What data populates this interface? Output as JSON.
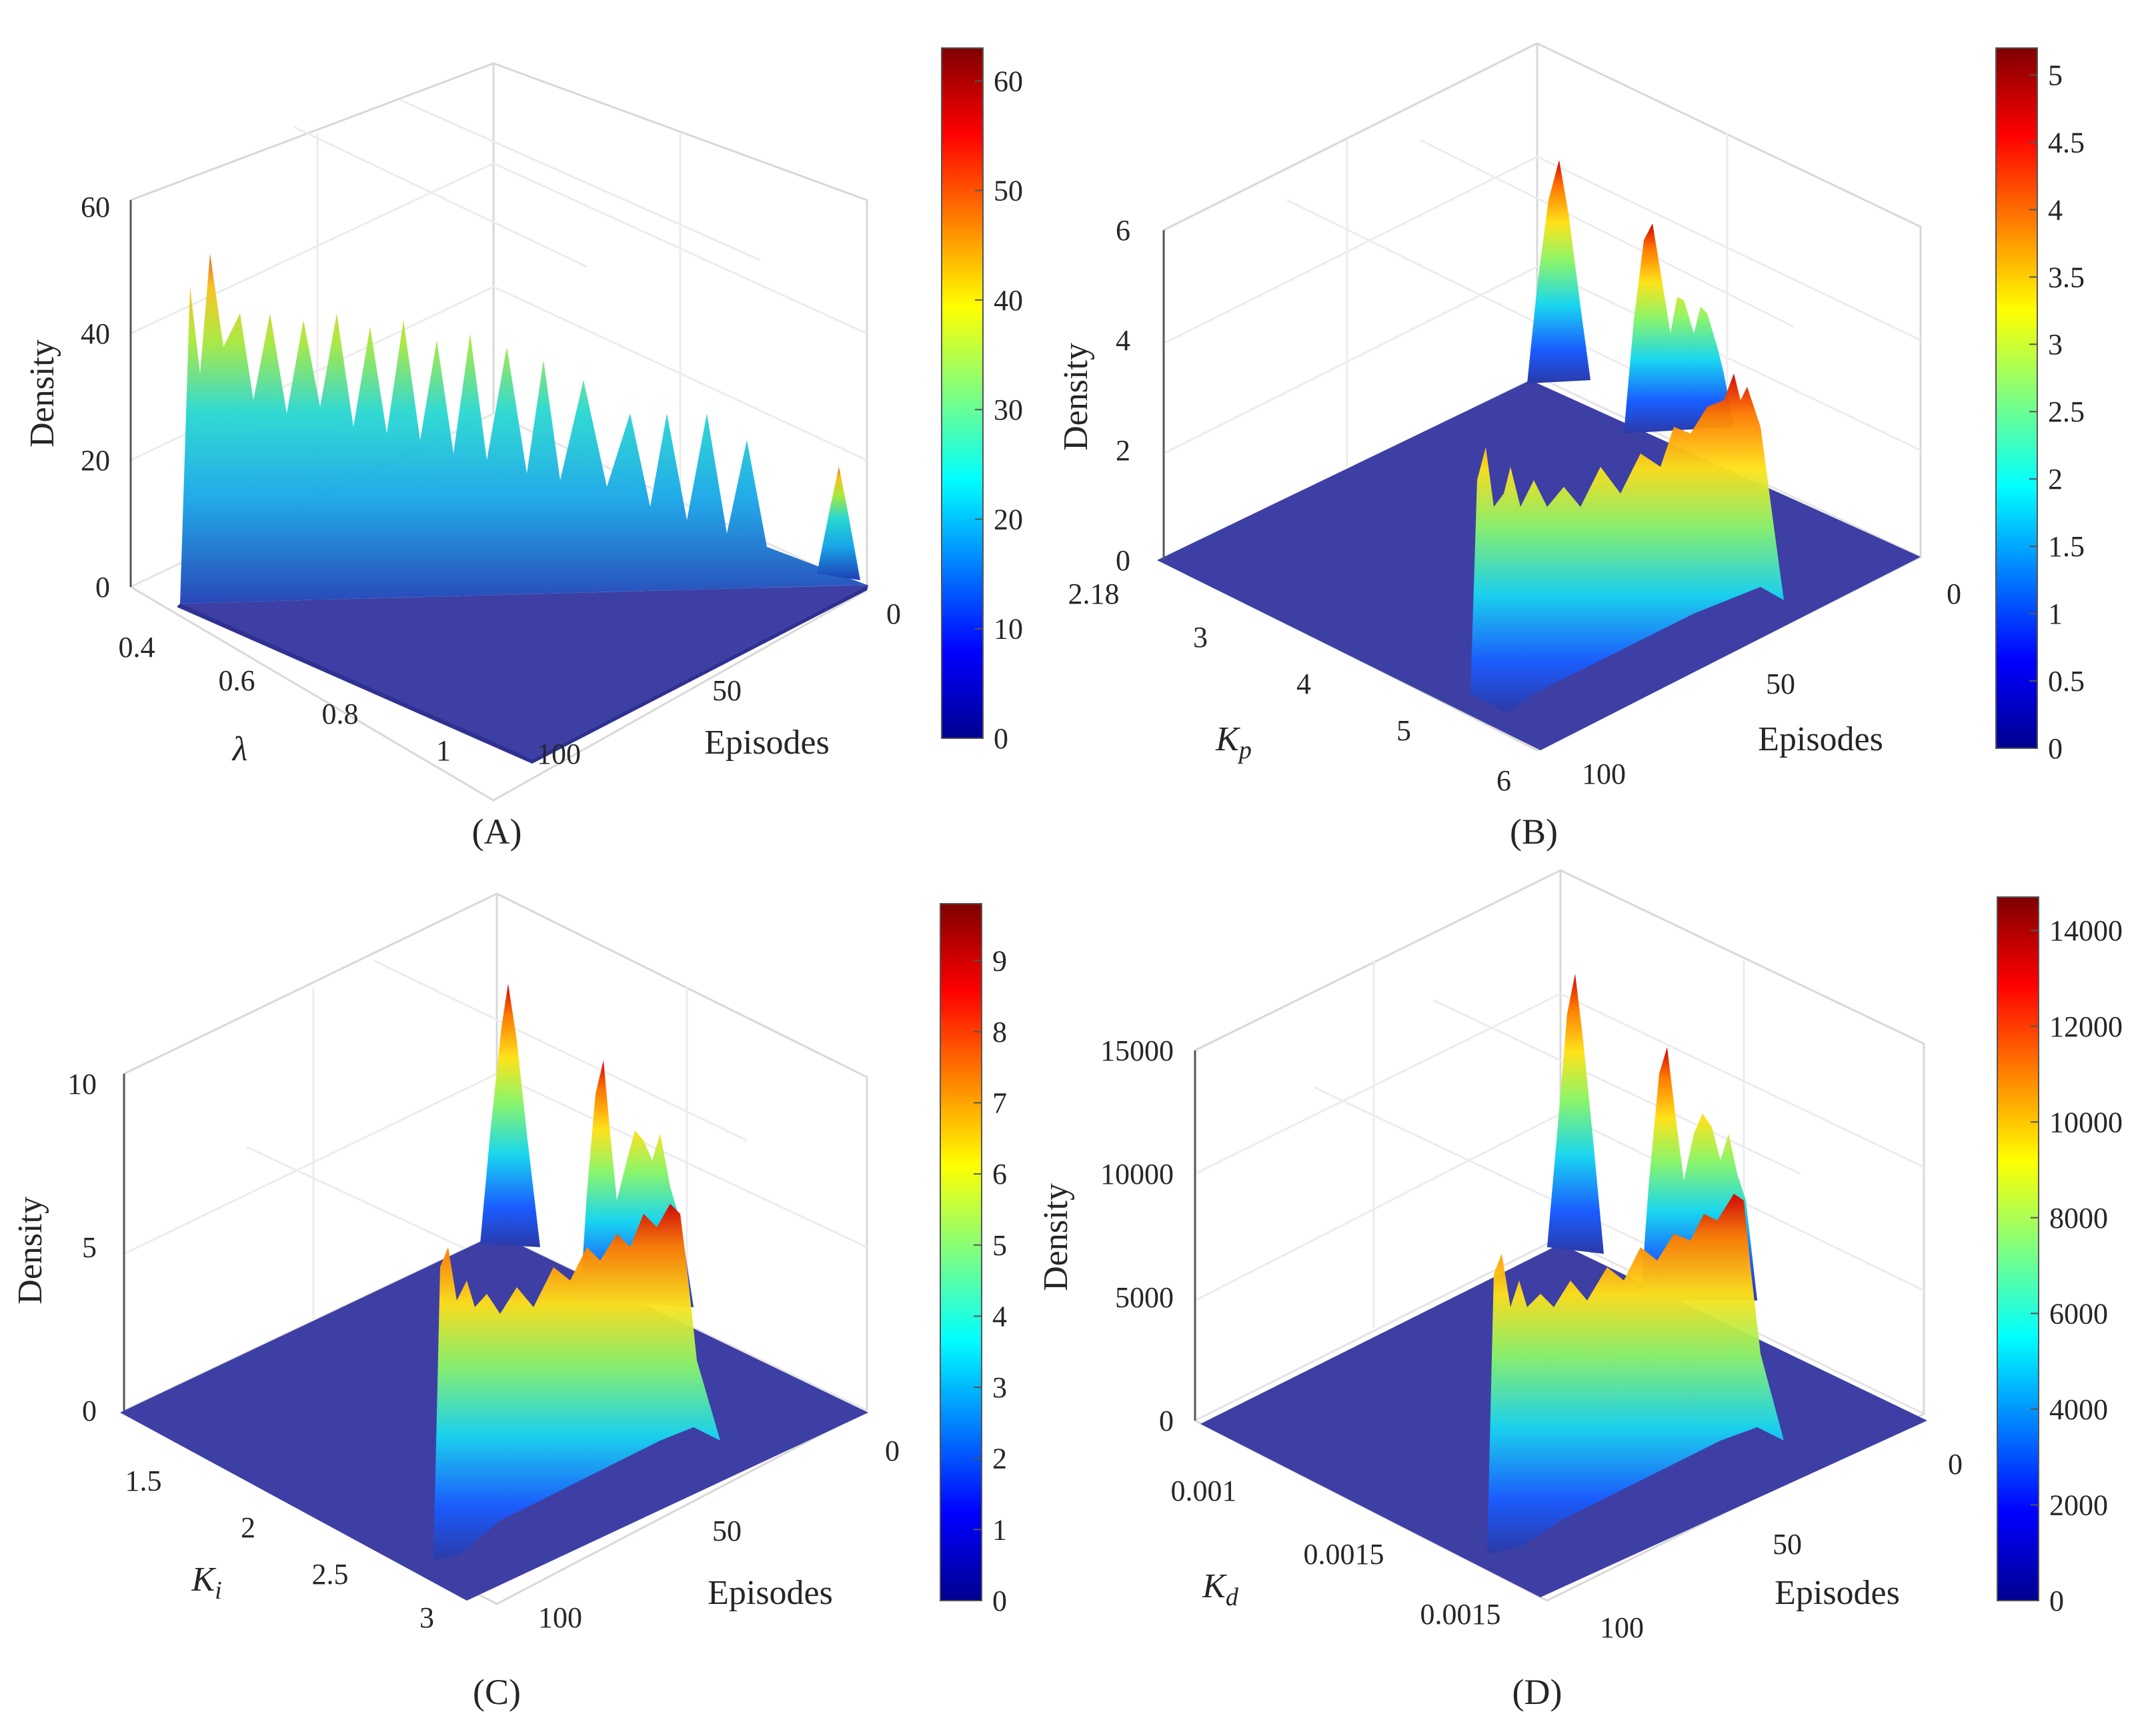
{
  "figure": {
    "panels": [
      {
        "caption": "(A)",
        "param_symbol": "λ",
        "param_sub": "",
        "zlabel": "Density",
        "xlabel": "Episodes",
        "param_ticks": [
          "0.4",
          "0.6",
          "0.8",
          "1"
        ],
        "episode_ticks": [
          "0",
          "50",
          "100"
        ],
        "density_ticks": [
          "0",
          "20",
          "40",
          "60"
        ],
        "colorbar_ticks": [
          "0",
          "10",
          "20",
          "30",
          "40",
          "50",
          "60"
        ]
      },
      {
        "caption": "(B)",
        "param_symbol": "K",
        "param_sub": "p",
        "zlabel": "Density",
        "xlabel": "Episodes",
        "param_ticks": [
          "2.18",
          "3",
          "4",
          "5",
          "6"
        ],
        "episode_ticks": [
          "0",
          "50",
          "100"
        ],
        "density_ticks": [
          "0",
          "2",
          "4",
          "6"
        ],
        "colorbar_ticks": [
          "0",
          "0.5",
          "1",
          "1.5",
          "2",
          "2.5",
          "3",
          "3.5",
          "4",
          "4.5",
          "5"
        ]
      },
      {
        "caption": "(C)",
        "param_symbol": "K",
        "param_sub": "i",
        "zlabel": "Density",
        "xlabel": "Episodes",
        "param_ticks": [
          "1.5",
          "2",
          "2.5",
          "3"
        ],
        "episode_ticks": [
          "0",
          "50",
          "100"
        ],
        "density_ticks": [
          "0",
          "5",
          "10"
        ],
        "colorbar_ticks": [
          "0",
          "1",
          "2",
          "3",
          "4",
          "5",
          "6",
          "7",
          "8",
          "9"
        ]
      },
      {
        "caption": "(D)",
        "param_symbol": "K",
        "param_sub": "d",
        "zlabel": "Density",
        "xlabel": "Episodes",
        "param_ticks": [
          "0.001",
          "0.0015",
          "0.0015"
        ],
        "episode_ticks": [
          "0",
          "50",
          "100"
        ],
        "density_ticks": [
          "0",
          "5000",
          "10000",
          "15000"
        ],
        "colorbar_ticks": [
          "0",
          "2000",
          "4000",
          "6000",
          "8000",
          "10000",
          "12000",
          "14000"
        ]
      }
    ]
  },
  "chart_data": [
    {
      "type": "surface3d",
      "title": "(A)",
      "xlabel": "Episodes",
      "ylabel": "λ",
      "zlabel": "Density",
      "episode_range": [
        0,
        100
      ],
      "param_range": [
        0.4,
        1.0
      ],
      "zlim": [
        0,
        60
      ],
      "colorbar_range": [
        0,
        63
      ],
      "ridge_peaks": [
        {
          "episode": 100,
          "param": 0.45,
          "density": 55
        },
        {
          "episode": 90,
          "param": 0.47,
          "density": 42
        },
        {
          "episode": 75,
          "param": 0.47,
          "density": 42
        },
        {
          "episode": 60,
          "param": 0.47,
          "density": 40
        },
        {
          "episode": 45,
          "param": 0.47,
          "density": 38
        },
        {
          "episode": 30,
          "param": 0.47,
          "density": 35
        },
        {
          "episode": 20,
          "param": 0.47,
          "density": 30
        },
        {
          "episode": 12,
          "param": 0.47,
          "density": 25
        },
        {
          "episode": 2,
          "param": 0.75,
          "density": 20
        }
      ]
    },
    {
      "type": "surface3d",
      "title": "(B)",
      "xlabel": "Episodes",
      "ylabel": "K_p",
      "zlabel": "Density",
      "episode_range": [
        0,
        100
      ],
      "param_range": [
        2.18,
        6
      ],
      "zlim": [
        0,
        6
      ],
      "colorbar_range": [
        0,
        5.2
      ],
      "ridge_peaks": [
        {
          "episode": 100,
          "param": 5.8,
          "density": 3.5
        },
        {
          "episode": 80,
          "param": 5.8,
          "density": 3.0
        },
        {
          "episode": 60,
          "param": 5.8,
          "density": 3.0
        },
        {
          "episode": 40,
          "param": 5.8,
          "density": 3.0
        },
        {
          "episode": 20,
          "param": 5.8,
          "density": 3.5
        },
        {
          "episode": 5,
          "param": 4.5,
          "density": 5.2
        },
        {
          "episode": 15,
          "param": 5.2,
          "density": 4.2
        },
        {
          "episode": 25,
          "param": 5.5,
          "density": 3.8
        }
      ]
    },
    {
      "type": "surface3d",
      "title": "(C)",
      "xlabel": "Episodes",
      "ylabel": "K_i",
      "zlabel": "Density",
      "episode_range": [
        0,
        100
      ],
      "param_range": [
        1.3,
        3.1
      ],
      "zlim": [
        0,
        10
      ],
      "colorbar_range": [
        0,
        9.8
      ],
      "ridge_peaks": [
        {
          "episode": 100,
          "param": 3.0,
          "density": 7.5
        },
        {
          "episode": 80,
          "param": 3.0,
          "density": 6.0
        },
        {
          "episode": 60,
          "param": 3.0,
          "density": 6.0
        },
        {
          "episode": 40,
          "param": 3.0,
          "density": 6.0
        },
        {
          "episode": 20,
          "param": 3.0,
          "density": 6.0
        },
        {
          "episode": 5,
          "param": 2.3,
          "density": 9.5
        },
        {
          "episode": 15,
          "param": 2.6,
          "density": 8.0
        },
        {
          "episode": 25,
          "param": 2.8,
          "density": 6.5
        }
      ]
    },
    {
      "type": "surface3d",
      "title": "(D)",
      "xlabel": "Episodes",
      "ylabel": "K_d",
      "zlabel": "Density",
      "episode_range": [
        0,
        100
      ],
      "param_range": [
        0.0008,
        0.0017
      ],
      "zlim": [
        0,
        15000
      ],
      "colorbar_range": [
        0,
        14700
      ],
      "ridge_peaks": [
        {
          "episode": 100,
          "param": 0.00165,
          "density": 13000
        },
        {
          "episode": 80,
          "param": 0.00165,
          "density": 10000
        },
        {
          "episode": 60,
          "param": 0.00165,
          "density": 9500
        },
        {
          "episode": 40,
          "param": 0.00165,
          "density": 9500
        },
        {
          "episode": 20,
          "param": 0.00165,
          "density": 9500
        },
        {
          "episode": 5,
          "param": 0.0014,
          "density": 14500
        },
        {
          "episode": 15,
          "param": 0.0015,
          "density": 12000
        },
        {
          "episode": 25,
          "param": 0.0016,
          "density": 10500
        }
      ]
    }
  ]
}
